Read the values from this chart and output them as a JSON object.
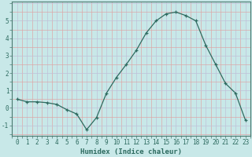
{
  "x": [
    0,
    1,
    2,
    3,
    4,
    5,
    6,
    7,
    8,
    9,
    10,
    11,
    12,
    13,
    14,
    15,
    16,
    17,
    18,
    19,
    20,
    21,
    22,
    23
  ],
  "y": [
    0.5,
    0.35,
    0.35,
    0.3,
    0.2,
    -0.1,
    -0.35,
    -1.25,
    -0.55,
    0.85,
    1.75,
    2.5,
    3.3,
    4.3,
    5.0,
    5.4,
    5.5,
    5.3,
    5.0,
    3.6,
    2.5,
    1.4,
    0.85,
    -0.7
  ],
  "line_color": "#2e6b60",
  "marker": "+",
  "markersize": 3,
  "linewidth": 0.9,
  "bg_color": "#c8e8e8",
  "grid_minor_color": "#dda8a8",
  "grid_major_color": "#c0c0d8",
  "xlabel": "Humidex (Indice chaleur)",
  "xlabel_fontsize": 6.5,
  "tick_fontsize": 5.5,
  "xlim": [
    -0.5,
    23.5
  ],
  "ylim": [
    -1.6,
    6.1
  ],
  "yticks": [
    -1,
    0,
    1,
    2,
    3,
    4,
    5
  ],
  "xticks": [
    0,
    1,
    2,
    3,
    4,
    5,
    6,
    7,
    8,
    9,
    10,
    11,
    12,
    13,
    14,
    15,
    16,
    17,
    18,
    19,
    20,
    21,
    22,
    23
  ]
}
